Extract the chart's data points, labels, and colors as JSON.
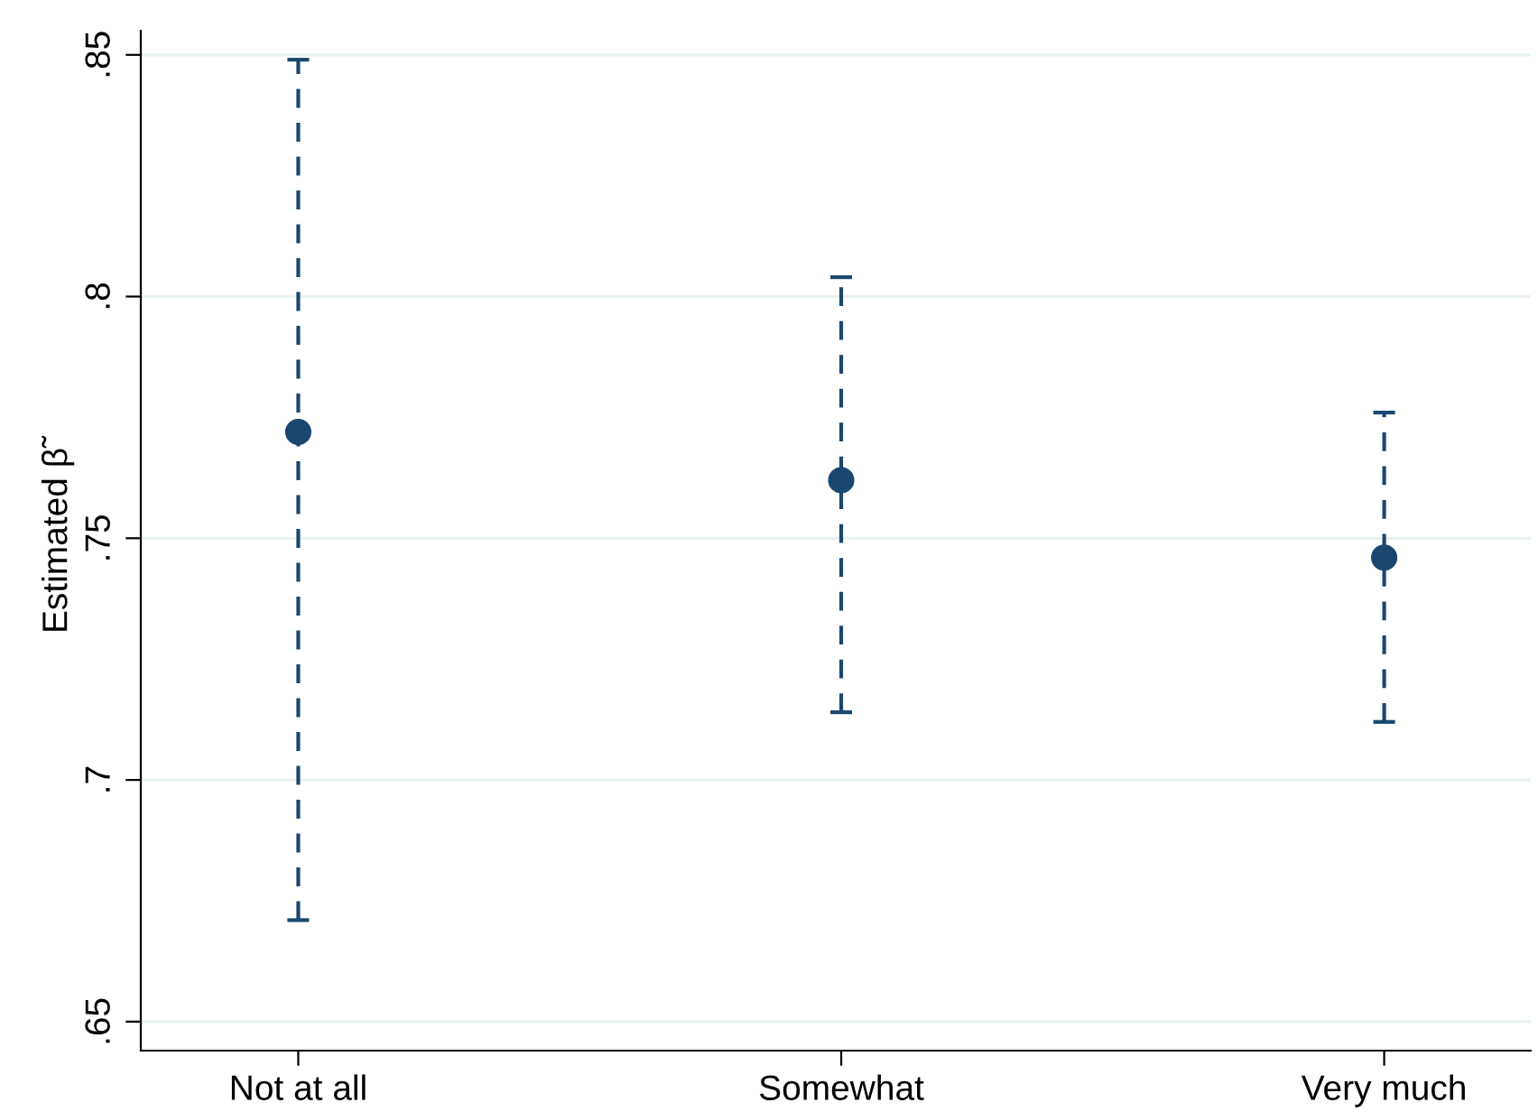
{
  "chart_data": {
    "type": "scatter",
    "ylabel": "Estimated β̃",
    "categories": [
      "Not at all",
      "Somewhat",
      "Very much"
    ],
    "series": [
      {
        "color": "#1a476f",
        "values": [
          0.772,
          0.762,
          0.746
        ],
        "errors": [
          [
            0.671,
            0.849
          ],
          [
            0.714,
            0.804
          ],
          [
            0.712,
            0.776
          ]
        ]
      }
    ],
    "ylim": [
      0.644,
      0.855
    ],
    "yticks": [
      {
        "value": 0.65,
        "label": ".65"
      },
      {
        "value": 0.7,
        "label": ".7"
      },
      {
        "value": 0.75,
        "label": ".75"
      },
      {
        "value": 0.8,
        "label": ".8"
      },
      {
        "value": 0.85,
        "label": ".85"
      }
    ],
    "grid": "y",
    "marker": "circle",
    "line_style": "dashed",
    "legend": false
  }
}
